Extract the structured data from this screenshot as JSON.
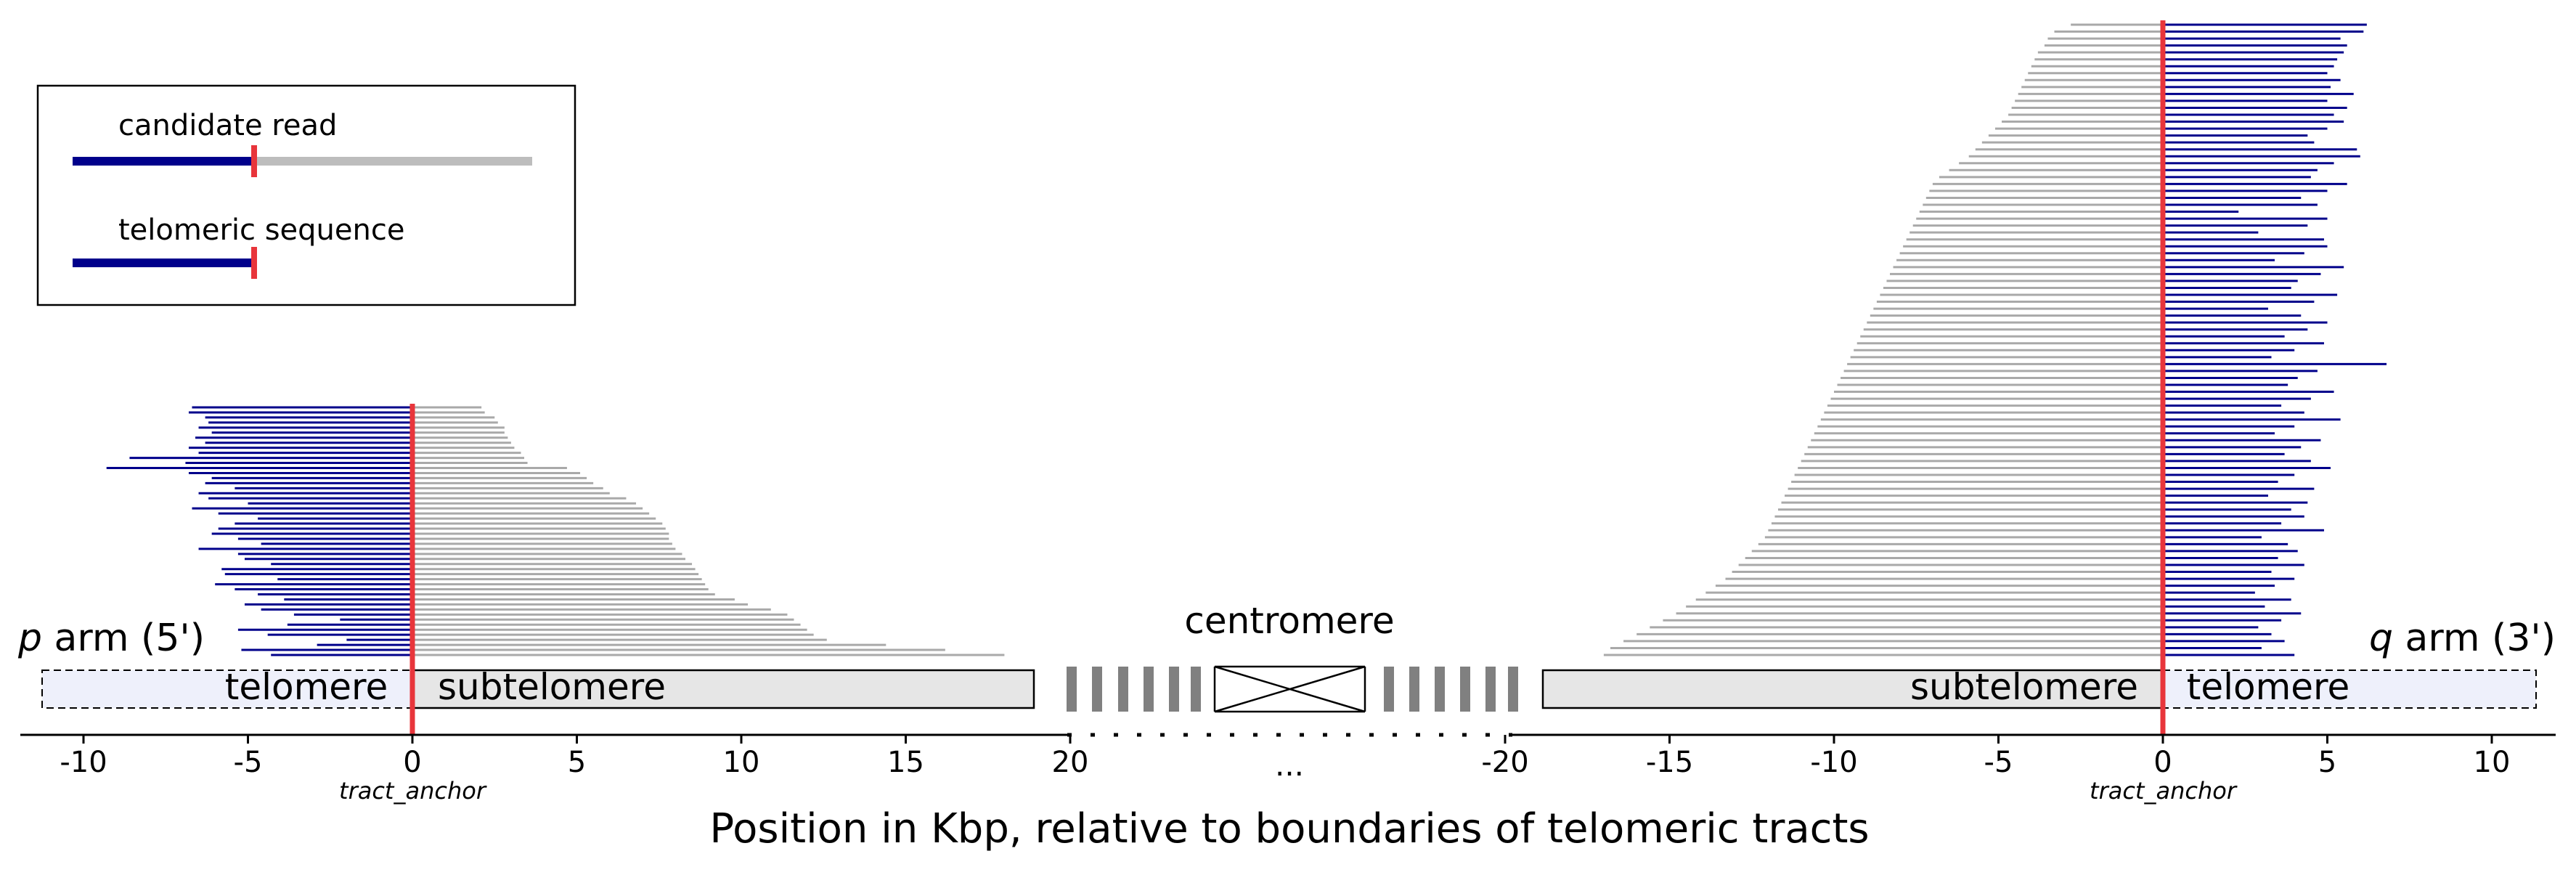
{
  "chart_data": {
    "type": "bar",
    "xlabel": "Position in Kbp, relative to boundaries of telomeric tracts",
    "colors": {
      "telomeric": "#00008b",
      "candidate": "#a9a9a9",
      "anchor": "#e8353b",
      "telomere_band": "#eef0fb",
      "subtelomere_band": "#e6e6e6"
    },
    "legend": {
      "position": "top-left",
      "entries": [
        {
          "label": "candidate read",
          "telomeric": 5,
          "total": 12.5
        },
        {
          "label": "telomeric sequence",
          "telomeric": 5,
          "total": 5
        }
      ]
    },
    "p_arm": {
      "label_italic": "p",
      "label_rest": " arm (5')",
      "xlim": [
        -12,
        20
      ],
      "ticks": [
        -10,
        -5,
        0,
        5,
        10,
        15,
        20
      ],
      "anchor_label": "tract_anchor",
      "band_left": "telomere",
      "band_right": "subtelomere",
      "reads": [
        [
          -6.7,
          2.1
        ],
        [
          -6.8,
          2.2
        ],
        [
          -6.3,
          2.5
        ],
        [
          -6.2,
          2.6
        ],
        [
          -6.5,
          2.8
        ],
        [
          -6.1,
          2.8
        ],
        [
          -6.6,
          2.9
        ],
        [
          -6.3,
          3.0
        ],
        [
          -6.8,
          3.1
        ],
        [
          -6.5,
          3.3
        ],
        [
          -8.6,
          3.4
        ],
        [
          -6.9,
          3.5
        ],
        [
          -9.3,
          4.7
        ],
        [
          -6.8,
          5.1
        ],
        [
          -6.1,
          5.3
        ],
        [
          -6.3,
          5.5
        ],
        [
          -5.4,
          5.8
        ],
        [
          -6.5,
          6.0
        ],
        [
          -6.2,
          6.5
        ],
        [
          -5.0,
          6.8
        ],
        [
          -6.7,
          7.0
        ],
        [
          -5.9,
          7.2
        ],
        [
          -4.7,
          7.4
        ],
        [
          -5.4,
          7.6
        ],
        [
          -5.9,
          7.7
        ],
        [
          -6.1,
          7.8
        ],
        [
          -5.3,
          7.8
        ],
        [
          -4.6,
          7.9
        ],
        [
          -6.5,
          8.0
        ],
        [
          -5.3,
          8.2
        ],
        [
          -5.1,
          8.3
        ],
        [
          -4.3,
          8.5
        ],
        [
          -5.8,
          8.6
        ],
        [
          -5.7,
          8.7
        ],
        [
          -4.1,
          8.8
        ],
        [
          -6.0,
          8.9
        ],
        [
          -5.4,
          9.0
        ],
        [
          -4.7,
          9.2
        ],
        [
          -3.9,
          9.8
        ],
        [
          -5.1,
          10.2
        ],
        [
          -4.6,
          10.9
        ],
        [
          -3.6,
          11.4
        ],
        [
          -2.2,
          11.6
        ],
        [
          -3.8,
          11.8
        ],
        [
          -5.3,
          12.0
        ],
        [
          -4.4,
          12.2
        ],
        [
          -2.0,
          12.6
        ],
        [
          -2.9,
          14.4
        ],
        [
          -5.2,
          16.2
        ],
        [
          -4.3,
          18.0
        ]
      ]
    },
    "q_arm": {
      "label_italic": "q",
      "label_rest": " arm (3')",
      "xlim": [
        -20,
        12
      ],
      "ticks": [
        -20,
        -15,
        -10,
        -5,
        0,
        5,
        10
      ],
      "anchor_label": "tract_anchor",
      "band_left": "subtelomere",
      "band_right": "telomere",
      "reads": [
        [
          -2.8,
          6.2
        ],
        [
          -3.3,
          6.1
        ],
        [
          -3.5,
          5.4
        ],
        [
          -3.6,
          5.6
        ],
        [
          -3.8,
          5.5
        ],
        [
          -3.9,
          5.3
        ],
        [
          -4.0,
          5.2
        ],
        [
          -4.1,
          5.0
        ],
        [
          -4.2,
          5.4
        ],
        [
          -4.3,
          5.1
        ],
        [
          -4.4,
          5.8
        ],
        [
          -4.5,
          5.0
        ],
        [
          -4.6,
          5.6
        ],
        [
          -4.7,
          5.2
        ],
        [
          -4.9,
          5.5
        ],
        [
          -5.1,
          5.0
        ],
        [
          -5.3,
          4.4
        ],
        [
          -5.5,
          4.6
        ],
        [
          -5.7,
          5.9
        ],
        [
          -5.9,
          6.0
        ],
        [
          -6.2,
          5.2
        ],
        [
          -6.5,
          4.7
        ],
        [
          -6.8,
          4.5
        ],
        [
          -7.0,
          5.6
        ],
        [
          -7.1,
          5.0
        ],
        [
          -7.2,
          4.2
        ],
        [
          -7.3,
          4.7
        ],
        [
          -7.4,
          2.3
        ],
        [
          -7.5,
          5.0
        ],
        [
          -7.6,
          4.4
        ],
        [
          -7.7,
          2.9
        ],
        [
          -7.8,
          4.9
        ],
        [
          -7.9,
          5.0
        ],
        [
          -8.0,
          4.3
        ],
        [
          -8.1,
          3.4
        ],
        [
          -8.2,
          5.5
        ],
        [
          -8.3,
          4.8
        ],
        [
          -8.4,
          4.1
        ],
        [
          -8.5,
          3.9
        ],
        [
          -8.6,
          5.3
        ],
        [
          -8.7,
          4.6
        ],
        [
          -8.8,
          3.2
        ],
        [
          -8.9,
          4.2
        ],
        [
          -9.0,
          5.0
        ],
        [
          -9.1,
          4.4
        ],
        [
          -9.2,
          3.7
        ],
        [
          -9.3,
          4.9
        ],
        [
          -9.4,
          4.0
        ],
        [
          -9.5,
          3.3
        ],
        [
          -9.6,
          6.8
        ],
        [
          -9.7,
          4.7
        ],
        [
          -9.8,
          4.1
        ],
        [
          -9.9,
          3.8
        ],
        [
          -10.0,
          5.2
        ],
        [
          -10.1,
          4.5
        ],
        [
          -10.2,
          3.6
        ],
        [
          -10.3,
          4.3
        ],
        [
          -10.4,
          5.4
        ],
        [
          -10.5,
          4.0
        ],
        [
          -10.6,
          3.4
        ],
        [
          -10.7,
          4.8
        ],
        [
          -10.8,
          4.2
        ],
        [
          -10.9,
          3.7
        ],
        [
          -11.0,
          4.5
        ],
        [
          -11.1,
          5.1
        ],
        [
          -11.2,
          4.0
        ],
        [
          -11.3,
          3.5
        ],
        [
          -11.4,
          4.6
        ],
        [
          -11.5,
          3.2
        ],
        [
          -11.6,
          4.4
        ],
        [
          -11.7,
          3.9
        ],
        [
          -11.8,
          4.3
        ],
        [
          -11.9,
          3.6
        ],
        [
          -12.0,
          4.9
        ],
        [
          -12.1,
          3.0
        ],
        [
          -12.3,
          3.8
        ],
        [
          -12.5,
          4.1
        ],
        [
          -12.7,
          3.5
        ],
        [
          -12.9,
          4.3
        ],
        [
          -13.1,
          3.3
        ],
        [
          -13.3,
          4.0
        ],
        [
          -13.6,
          3.4
        ],
        [
          -13.9,
          2.8
        ],
        [
          -14.2,
          3.9
        ],
        [
          -14.5,
          3.1
        ],
        [
          -14.8,
          4.2
        ],
        [
          -15.2,
          3.6
        ],
        [
          -15.6,
          2.9
        ],
        [
          -16.0,
          3.3
        ],
        [
          -16.4,
          3.7
        ],
        [
          -16.8,
          3.0
        ],
        [
          -17.0,
          4.0
        ]
      ]
    },
    "center": {
      "label": "centromere",
      "gap_label": "...",
      "left_tick": "20",
      "right_tick": "-20"
    }
  }
}
